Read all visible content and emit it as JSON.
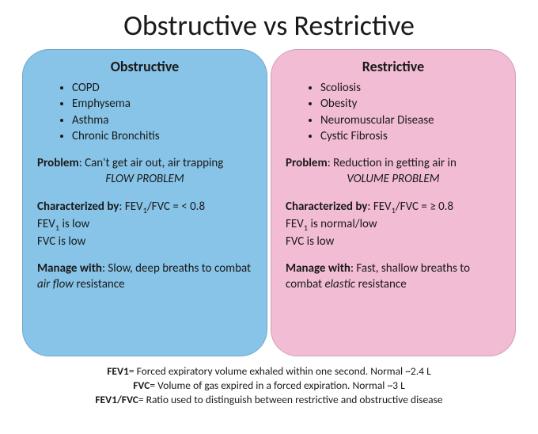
{
  "title": "Obstructive vs Restrictive",
  "left": {
    "bg": "#87c4e8",
    "heading": "Obstructive",
    "examples": [
      "COPD",
      "Emphysema",
      "Asthma",
      "Chronic Bronchitis"
    ],
    "problem_label": "Problem",
    "problem_text": ": Can't get air out, air trapping",
    "problem_tag": "FLOW PROBLEM",
    "char_label": "Characterized by",
    "char_top_html": ": FEV<sub>1</sub>/FVC = < 0.8",
    "char_l2_html": "FEV<sub>1</sub> is low",
    "char_l3": "FVC is low",
    "manage_label": "Manage with",
    "manage_html": ": Slow, deep breaths to combat <em>air flow</em> resistance"
  },
  "right": {
    "bg": "#f2bcd4",
    "heading": "Restrictive",
    "examples": [
      "Scoliosis",
      "Obesity",
      "Neuromuscular Disease",
      "Cystic Fibrosis"
    ],
    "problem_label": "Problem",
    "problem_text": ": Reduction in getting air in",
    "problem_tag": "VOLUME PROBLEM",
    "char_label": "Characterized by",
    "char_top_html": ": FEV<sub>1</sub>/FVC = ≥ 0.8",
    "char_l2_html": "FEV<sub>1</sub> is normal/low",
    "char_l3": "FVC is low",
    "manage_label": "Manage with",
    "manage_html": ": Fast, shallow breaths to combat <em>elastic</em> resistance"
  },
  "footer": {
    "fev1_k": "FEV1",
    "fev1_v": "= Forced expiratory volume exhaled within one second. Normal ~2.4 L",
    "fvc_k": "FVC",
    "fvc_v": "= Volume of gas expired in a forced expiration. Normal ~3 L",
    "ratio_k": "FEV1/FVC",
    "ratio_v": "= Ratio used to distinguish between restrictive and obstructive disease"
  }
}
